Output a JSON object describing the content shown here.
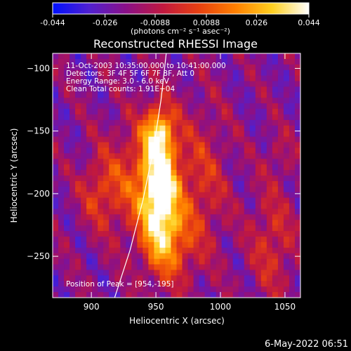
{
  "colorbar": {
    "tick_labels": [
      "-0.044",
      "-0.026",
      "-0.0088",
      "0.0088",
      "0.026",
      "0.044"
    ],
    "tick_values": [
      -0.044,
      -0.026,
      -0.0088,
      0.0088,
      0.026,
      0.044
    ],
    "range": [
      -0.044,
      0.044
    ],
    "unit_label": "(photons cm⁻² s⁻¹ asec⁻²)",
    "colormap": [
      "#0010ff",
      "#5020d0",
      "#8a1088",
      "#c01840",
      "#e84010",
      "#ff8000",
      "#ffd020",
      "#ffffff"
    ]
  },
  "chart_data": {
    "type": "heatmap",
    "title": "Reconstructed RHESSI Image",
    "xlabel": "Heliocentric X (arcsec)",
    "ylabel": "Heliocentric Y (arcsec)",
    "xlim": [
      870,
      1062
    ],
    "ylim": [
      -283,
      -88
    ],
    "x_ticks": [
      900,
      950,
      1000,
      1050
    ],
    "x_tick_labels": [
      "900",
      "950",
      "1000",
      "1050"
    ],
    "y_ticks": [
      -100,
      -150,
      -200,
      -250
    ],
    "y_tick_labels": [
      "−100",
      "−150",
      "−200",
      "−250"
    ],
    "annotations": [
      "11-Oct-2003 10:35:00.000 to 10:41:00.000",
      "Detectors: 3F 4F 5F 6F 7F 8F, Att 0",
      "Energy Range: 3.0 - 6.0 keV",
      "Clean     Total counts: 1.91E+04"
    ],
    "peak_label": "Position of Peak = [954,-195]",
    "peak": [
      954,
      -195
    ],
    "limb_curve": [
      [
        918,
        -283
      ],
      [
        930,
        -245
      ],
      [
        940,
        -205
      ],
      [
        948,
        -165
      ],
      [
        954,
        -125
      ],
      [
        958,
        -88
      ]
    ],
    "sources": [
      {
        "x": 953,
        "y": -195,
        "sx": 10,
        "sy": 32,
        "amp": 1.0
      },
      {
        "x": 952,
        "y": -150,
        "sx": 8,
        "sy": 14,
        "amp": 0.55
      },
      {
        "x": 960,
        "y": -240,
        "sx": 14,
        "sy": 22,
        "amp": 0.45
      },
      {
        "x": 930,
        "y": -190,
        "sx": 18,
        "sy": 30,
        "amp": 0.35
      },
      {
        "x": 985,
        "y": -190,
        "sx": 14,
        "sy": 40,
        "amp": 0.3
      },
      {
        "x": 905,
        "y": -200,
        "sx": 10,
        "sy": 18,
        "amp": 0.25
      },
      {
        "x": 1040,
        "y": -240,
        "sx": 12,
        "sy": 30,
        "amp": 0.3
      },
      {
        "x": 1045,
        "y": -170,
        "sx": 8,
        "sy": 14,
        "amp": 0.15
      }
    ]
  },
  "footer": {
    "date": "6-May-2022 06:51"
  }
}
